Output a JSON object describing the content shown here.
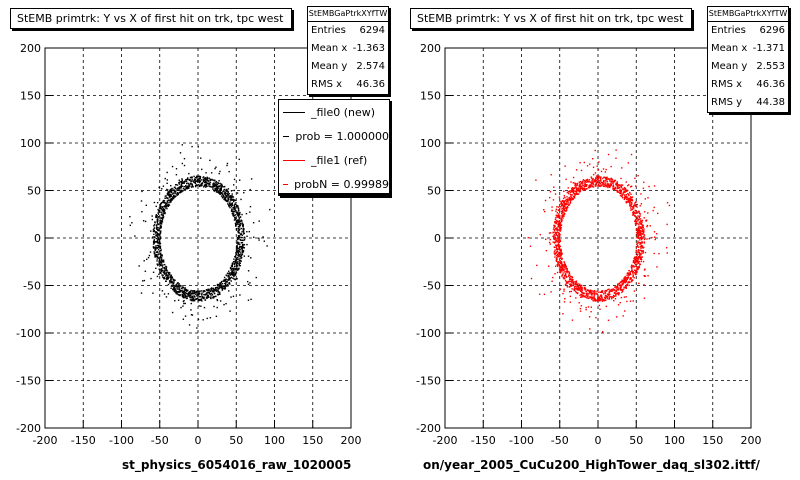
{
  "chart_data": [
    {
      "type": "scatter",
      "title": "StEMB primtrk: Y vs X of first hit on trk, tpc west",
      "stats_name": "StEMBGaPtrkXYfTW",
      "stats": [
        {
          "label": "Entries",
          "value": "6294"
        },
        {
          "label": "Mean x",
          "value": "-1.363"
        },
        {
          "label": "Mean y",
          "value": "2.574"
        },
        {
          "label": "RMS x",
          "value": "46.36"
        }
      ],
      "legend": [
        {
          "label": "_file0 (new)",
          "color": "#000000"
        },
        {
          "label": "prob = 1.000000",
          "color": "#000000"
        },
        {
          "label": "_file1 (ref)",
          "color": "#ff0000"
        },
        {
          "label": "probN = 0.99989",
          "color": "#ff0000"
        }
      ],
      "xlabel": "st_physics_6054016_raw_1020005",
      "xlim": [
        -200,
        200
      ],
      "ylim": [
        -200,
        200
      ],
      "xticks": [
        -200,
        -150,
        -100,
        -50,
        0,
        50,
        100,
        150,
        200
      ],
      "yticks": [
        200,
        150,
        100,
        50,
        0,
        -50,
        -100,
        -150,
        -200
      ],
      "grid": true,
      "point_color": "#000000",
      "ring": {
        "inner_x": 50,
        "inner_y": 55,
        "outer_x": 60,
        "outer_y": 65,
        "halo": 100
      }
    },
    {
      "type": "scatter",
      "title": "StEMB primtrk: Y vs X of first hit on trk, tpc west",
      "stats_name": "StEMBGaPtrkXYfTW",
      "stats": [
        {
          "label": "Entries",
          "value": "6296"
        },
        {
          "label": "Mean x",
          "value": "-1.371"
        },
        {
          "label": "Mean y",
          "value": "2.553"
        },
        {
          "label": "RMS x",
          "value": "46.36"
        },
        {
          "label": "RMS y",
          "value": "44.38"
        }
      ],
      "xlabel": "on/year_2005_CuCu200_HighTower_daq_sl302.ittf/",
      "xlim": [
        -200,
        200
      ],
      "ylim": [
        -200,
        200
      ],
      "xticks": [
        -200,
        -150,
        -100,
        -50,
        0,
        50,
        100,
        150,
        200
      ],
      "yticks": [
        200,
        150,
        100,
        50,
        0,
        -50,
        -100,
        -150,
        -200
      ],
      "grid": true,
      "point_color": "#ff0000",
      "ring": {
        "inner_x": 50,
        "inner_y": 55,
        "outer_x": 60,
        "outer_y": 65,
        "halo": 100
      }
    }
  ]
}
